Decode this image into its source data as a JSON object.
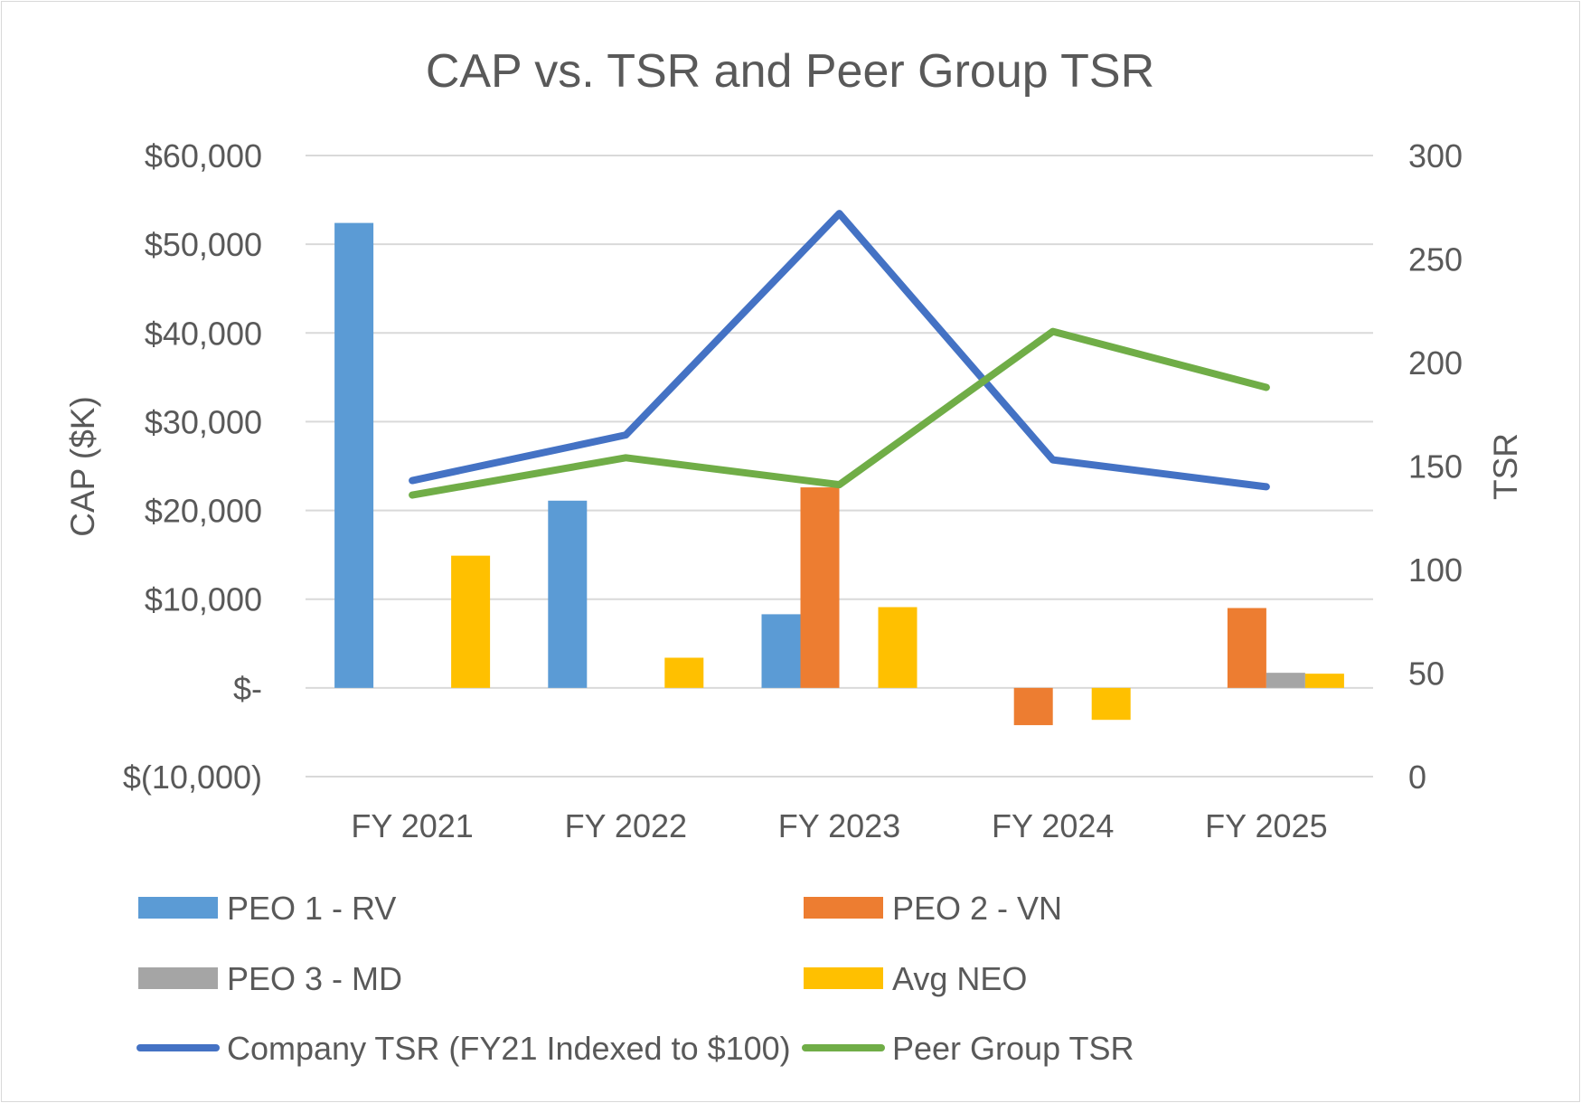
{
  "chart_data": {
    "type": "bar",
    "title": "CAP vs. TSR and Peer Group TSR",
    "ylabel": "CAP ($K)",
    "y2label": "TSR",
    "categories": [
      "FY 2021",
      "FY 2022",
      "FY 2023",
      "FY 2024",
      "FY 2025"
    ],
    "ylim": [
      -10000,
      60000
    ],
    "yticks": [
      60000,
      50000,
      40000,
      30000,
      20000,
      10000,
      0,
      -10000
    ],
    "ytick_labels": [
      "$60,000",
      "$50,000",
      "$40,000",
      "$30,000",
      "$20,000",
      "$10,000",
      "$-",
      "$(10,000)"
    ],
    "y2lim": [
      0,
      300
    ],
    "y2ticks": [
      300,
      250,
      200,
      150,
      100,
      50,
      0
    ],
    "y2tick_labels": [
      "300",
      "250",
      "200",
      "150",
      "100",
      "50",
      "0"
    ],
    "grid": true,
    "legend_position": "bottom",
    "series": [
      {
        "name": "PEO 1 - RV",
        "type": "bar",
        "axis": "left",
        "color": "#5B9BD5",
        "values": [
          52400,
          21100,
          8300,
          null,
          null
        ]
      },
      {
        "name": "PEO 2 - VN",
        "type": "bar",
        "axis": "left",
        "color": "#ED7D31",
        "values": [
          null,
          null,
          22600,
          -4200,
          9000
        ]
      },
      {
        "name": "PEO 3 - MD",
        "type": "bar",
        "axis": "left",
        "color": "#A5A5A5",
        "values": [
          null,
          null,
          null,
          null,
          1700
        ]
      },
      {
        "name": "Avg NEO",
        "type": "bar",
        "axis": "left",
        "color": "#FFC000",
        "values": [
          14900,
          3400,
          9100,
          -3600,
          1600
        ]
      },
      {
        "name": "Company TSR (FY21 Indexed to $100)",
        "type": "line",
        "axis": "right",
        "color": "#4472C4",
        "values": [
          143,
          165,
          272,
          153,
          140
        ]
      },
      {
        "name": "Peer Group TSR",
        "type": "line",
        "axis": "right",
        "color": "#70AD47",
        "values": [
          136,
          154,
          141,
          215,
          188
        ]
      }
    ]
  }
}
